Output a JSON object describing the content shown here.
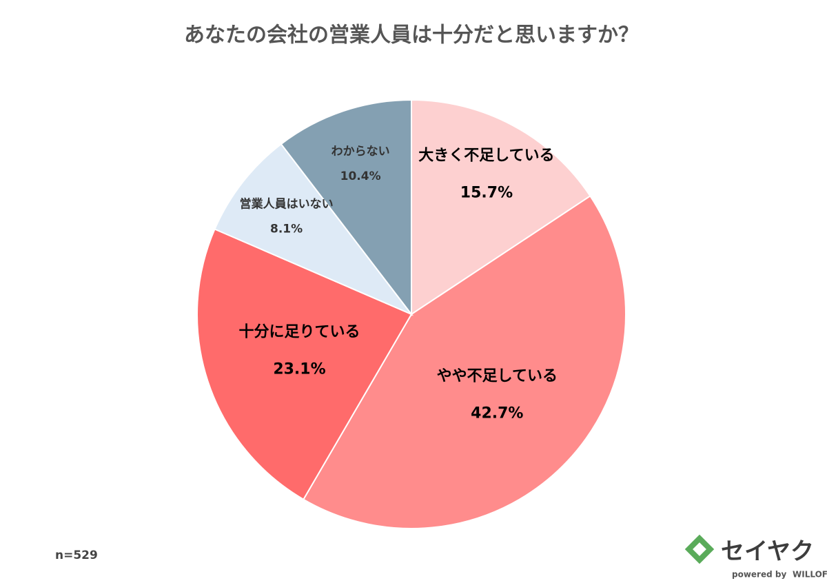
{
  "chart_data": {
    "type": "pie",
    "title": "あなたの会社の営業人員は十分だと思いますか？",
    "categories": [
      "大きく不足している",
      "やや不足している",
      "十分に足りている",
      "営業人員はいない",
      "わからない"
    ],
    "values": [
      15.7,
      42.7,
      23.1,
      8.1,
      10.4
    ],
    "value_labels": [
      "15.7%",
      "42.7%",
      "23.1%",
      "8.1%",
      "10.4%"
    ],
    "colors": [
      "#fdd0d0",
      "#ff8c8c",
      "#ff6b6b",
      "#deeaf6",
      "#84a0b2"
    ],
    "note": "n=529"
  },
  "logo": {
    "name": "セイヤク",
    "powered": "powered by",
    "brand": "WILLOF"
  }
}
